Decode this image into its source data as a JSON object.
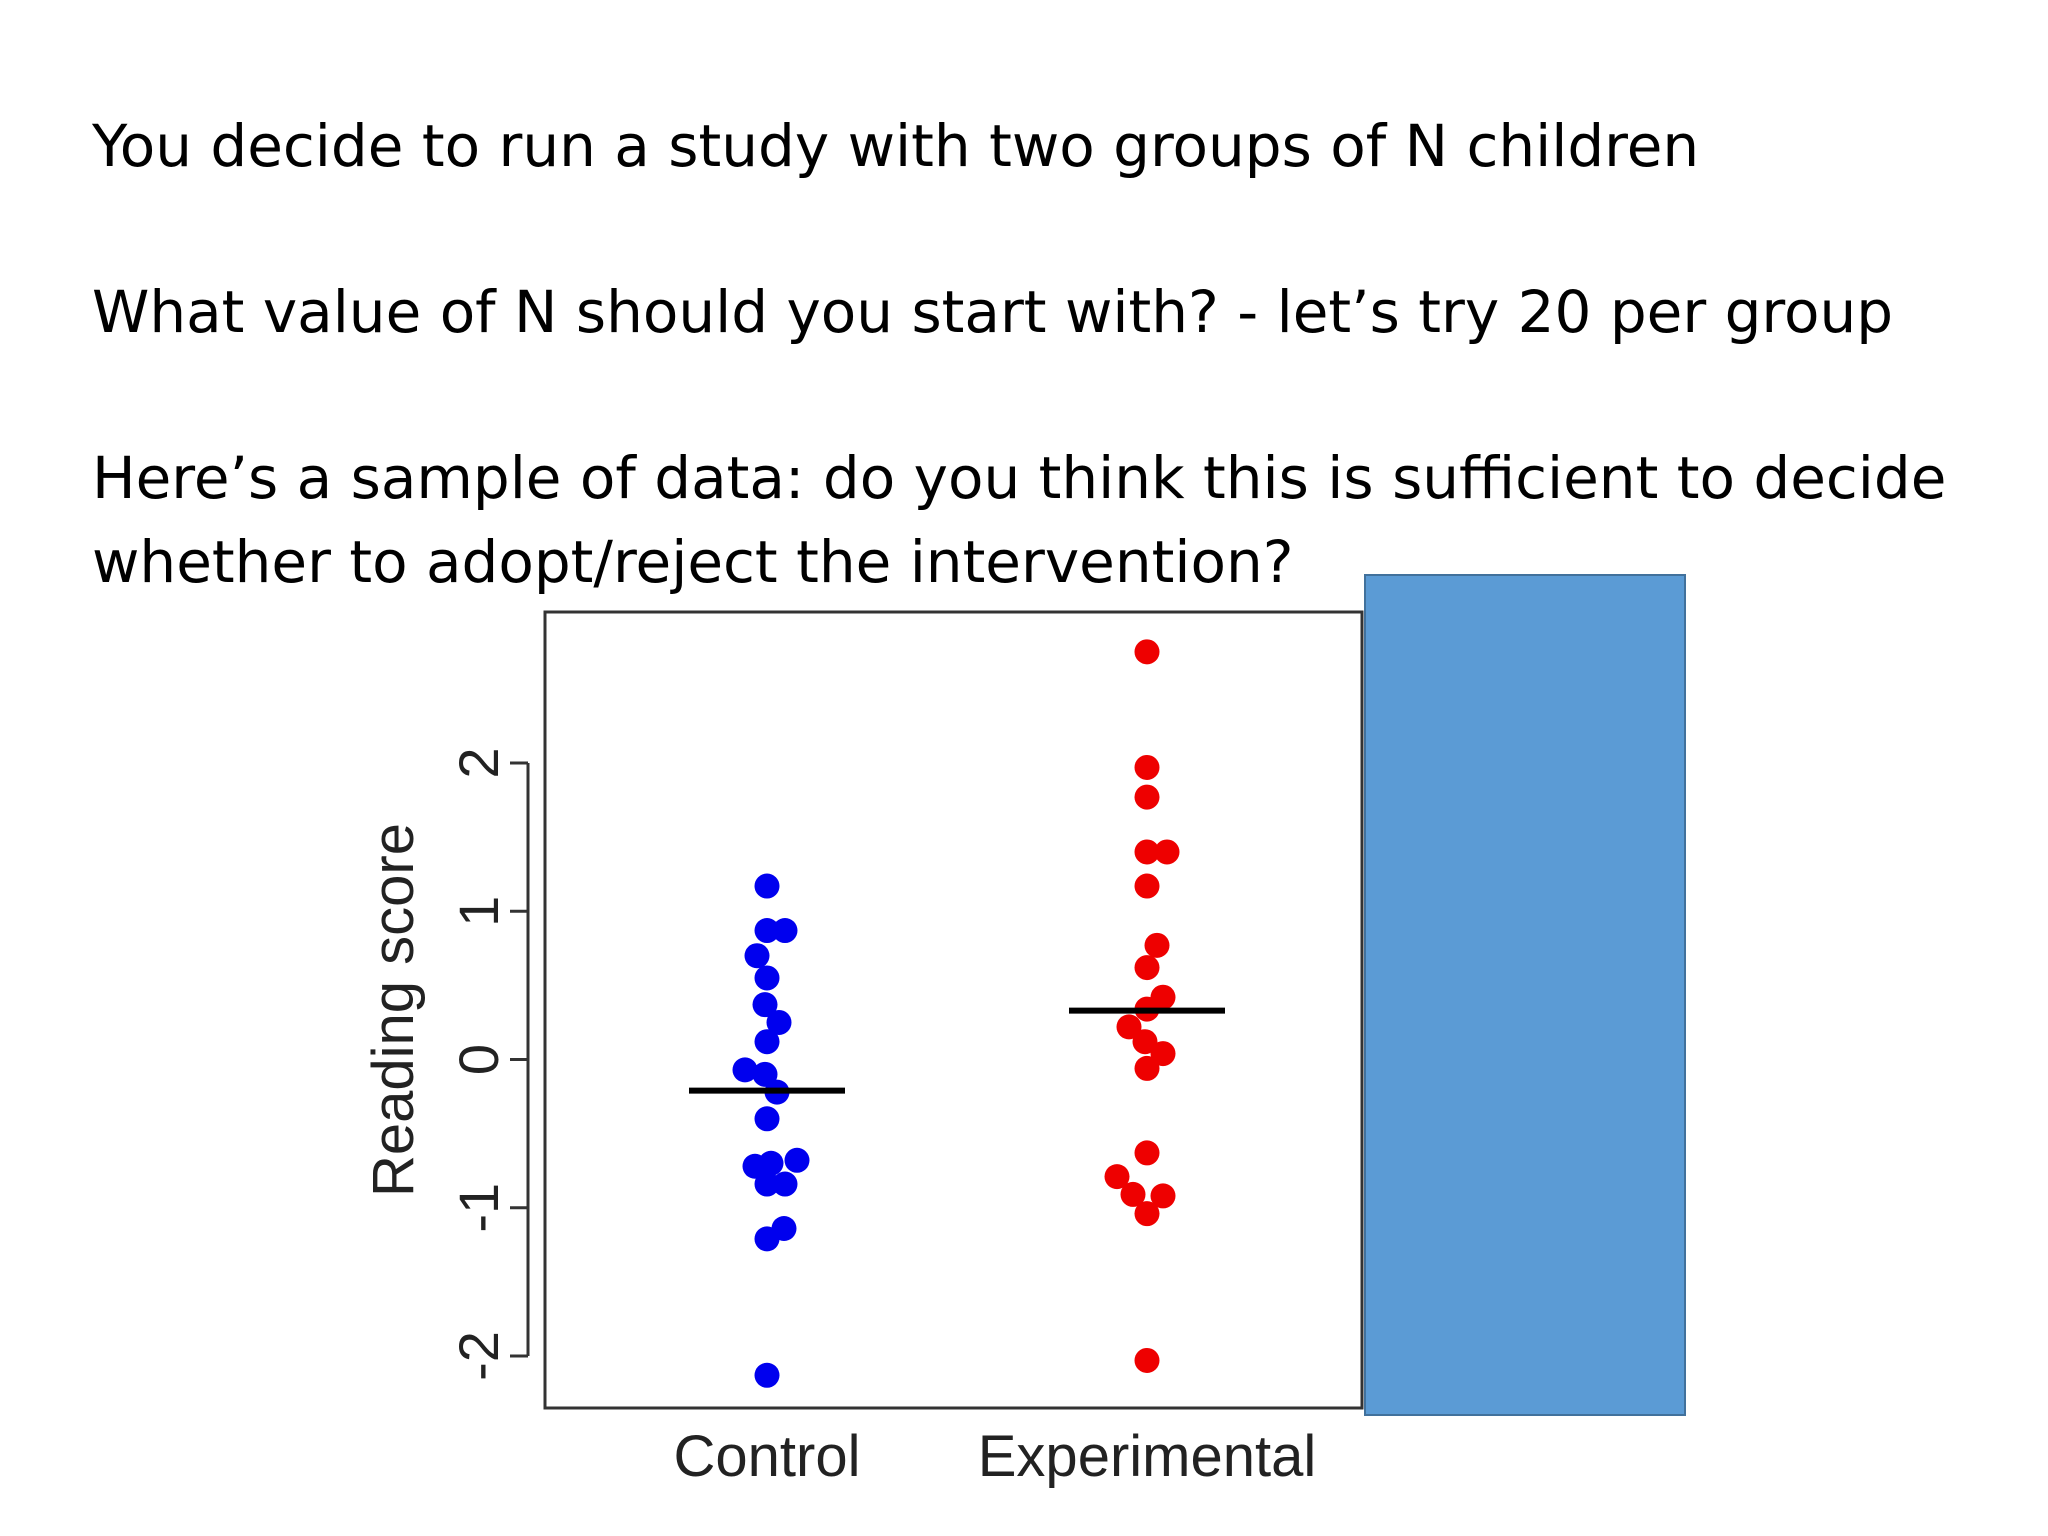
{
  "slide": {
    "line1": "You decide to run a study with two groups of N children",
    "line2": "What value of N should you start with?  - let’s try 20 per group",
    "line3": "Here’s a sample of data: do you think this is sufficient to decide",
    "line4": "whether to adopt/reject the intervention?"
  },
  "colors": {
    "box": "#5b9bd5",
    "control": "#0000ee",
    "experimental": "#ee0000",
    "mean_line": "#000000"
  },
  "chart_data": {
    "type": "scatter",
    "title": "",
    "xlabel": "",
    "ylabel": "Reading score",
    "ylim": [
      -2.3,
      2.9
    ],
    "yticks": [
      -2,
      -1,
      0,
      1,
      2
    ],
    "ytick_labels": [
      "-2",
      "-1",
      "0",
      "1",
      "2"
    ],
    "categories": [
      "Control",
      "Experimental"
    ],
    "grid": false,
    "legend": "none",
    "series": [
      {
        "category": "Control",
        "color": "#0000ee",
        "mean": -0.21,
        "points": [
          {
            "x": 0.0,
            "y": 1.17
          },
          {
            "x": 0.0,
            "y": 0.87
          },
          {
            "x": 0.18,
            "y": 0.87
          },
          {
            "x": -0.1,
            "y": 0.7
          },
          {
            "x": 0.0,
            "y": 0.55
          },
          {
            "x": -0.02,
            "y": 0.37
          },
          {
            "x": 0.12,
            "y": 0.25
          },
          {
            "x": 0.0,
            "y": 0.12
          },
          {
            "x": -0.22,
            "y": -0.07
          },
          {
            "x": -0.02,
            "y": -0.1
          },
          {
            "x": 0.1,
            "y": -0.22
          },
          {
            "x": 0.0,
            "y": -0.4
          },
          {
            "x": -0.12,
            "y": -0.72
          },
          {
            "x": 0.04,
            "y": -0.7
          },
          {
            "x": 0.3,
            "y": -0.68
          },
          {
            "x": 0.0,
            "y": -0.84
          },
          {
            "x": 0.18,
            "y": -0.84
          },
          {
            "x": 0.17,
            "y": -1.14
          },
          {
            "x": 0.0,
            "y": -1.21
          },
          {
            "x": 0.0,
            "y": -2.13
          }
        ]
      },
      {
        "category": "Experimental",
        "color": "#ee0000",
        "mean": 0.33,
        "points": [
          {
            "x": 0.0,
            "y": 2.75
          },
          {
            "x": 0.0,
            "y": 1.97
          },
          {
            "x": 0.0,
            "y": 1.77
          },
          {
            "x": 0.0,
            "y": 1.4
          },
          {
            "x": 0.2,
            "y": 1.4
          },
          {
            "x": 0.0,
            "y": 1.17
          },
          {
            "x": 0.1,
            "y": 0.77
          },
          {
            "x": 0.0,
            "y": 0.62
          },
          {
            "x": 0.16,
            "y": 0.42
          },
          {
            "x": 0.0,
            "y": 0.34
          },
          {
            "x": -0.18,
            "y": 0.22
          },
          {
            "x": -0.02,
            "y": 0.12
          },
          {
            "x": 0.16,
            "y": 0.04
          },
          {
            "x": 0.0,
            "y": -0.06
          },
          {
            "x": 0.0,
            "y": -0.63
          },
          {
            "x": -0.3,
            "y": -0.79
          },
          {
            "x": -0.14,
            "y": -0.91
          },
          {
            "x": 0.16,
            "y": -0.92
          },
          {
            "x": 0.0,
            "y": -1.04
          },
          {
            "x": 0.0,
            "y": -2.03
          }
        ]
      }
    ]
  }
}
